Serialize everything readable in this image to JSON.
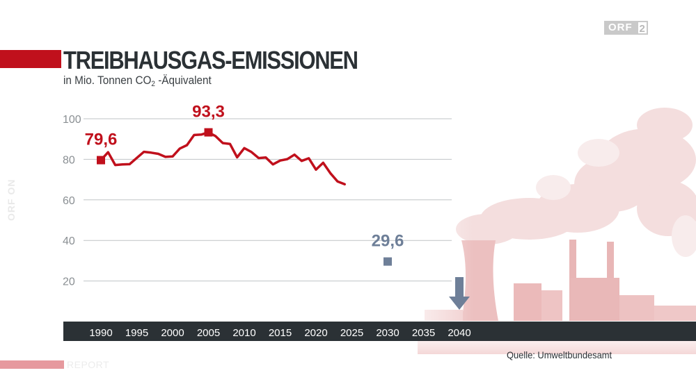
{
  "broadcaster": {
    "logo_text": "ORF",
    "logo_number": "2",
    "side_watermark": "ORF ON",
    "program": "REPORT"
  },
  "title": "TREIBHAUSGAS-EMISSIONEN",
  "subtitle": {
    "prefix": "in Mio. Tonnen CO",
    "subscript": "2",
    "suffix": " -Äquivalent"
  },
  "source": "Quelle: Umweltbundesamt",
  "colors": {
    "accent_red": "#c0101c",
    "target_blue": "#6e7f98",
    "axis_bar": "#2b3135",
    "grid": "#bfc3c6"
  },
  "chart_data": {
    "type": "line",
    "title": "TREIBHAUSGAS-EMISSIONEN",
    "ylabel": "in Mio. Tonnen CO2 -Äquivalent",
    "xlabel": "",
    "xlim": [
      1988,
      2043
    ],
    "ylim": [
      0,
      100
    ],
    "y_ticks": [
      20,
      40,
      60,
      80,
      100
    ],
    "x_ticks": [
      "1990",
      "1995",
      "2000",
      "2005",
      "2010",
      "2015",
      "2020",
      "2025",
      "2030",
      "2035",
      "2040"
    ],
    "grid": "horizontal",
    "series": [
      {
        "color": "#c0101c",
        "x": [
          1990,
          1991,
          1992,
          1993,
          1994,
          1995,
          1996,
          1997,
          1998,
          1999,
          2000,
          2001,
          2002,
          2003,
          2004,
          2005,
          2006,
          2007,
          2008,
          2009,
          2010,
          2011,
          2012,
          2013,
          2014,
          2015,
          2016,
          2017,
          2018,
          2019,
          2020,
          2021,
          2022,
          2023,
          2024
        ],
        "values": [
          79.6,
          83.5,
          77.2,
          77.5,
          77.6,
          80.7,
          83.7,
          83.3,
          82.7,
          81.2,
          81.4,
          85.3,
          87.0,
          92.0,
          92.2,
          93.3,
          91.4,
          88.0,
          87.6,
          81.0,
          85.5,
          83.6,
          80.6,
          80.9,
          77.5,
          79.4,
          80.1,
          82.3,
          79.2,
          80.5,
          74.9,
          78.3,
          73.2,
          69.1,
          67.7
        ]
      }
    ],
    "annotations": [
      {
        "label": "79,6",
        "x": 1990,
        "y": 79.6,
        "color": "#c0101c"
      },
      {
        "label": "93,3",
        "x": 2005,
        "y": 93.3,
        "color": "#c0101c"
      },
      {
        "label": "29,6",
        "x": 2030,
        "y": 29.6,
        "color": "#6e7f98"
      }
    ],
    "arrow": {
      "x": 2040,
      "color": "#6e7f98"
    }
  }
}
